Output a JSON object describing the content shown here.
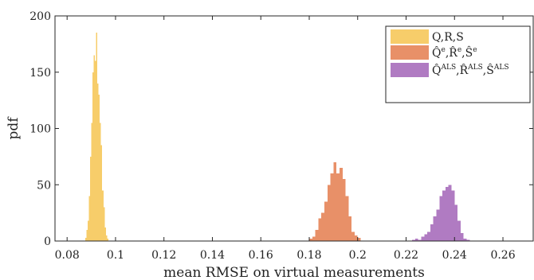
{
  "chart_data": {
    "type": "histogram",
    "xlabel": "mean RMSE on virtual measurements",
    "ylabel": "pdf",
    "xlim": [
      0.075,
      0.2725
    ],
    "ylim": [
      0,
      200
    ],
    "xticks": [
      0.08,
      0.1,
      0.12,
      0.14,
      0.16,
      0.18,
      0.2,
      0.22,
      0.24,
      0.26
    ],
    "xtick_labels": [
      "0.08",
      "0.1",
      "0.12",
      "0.14",
      "0.16",
      "0.18",
      "0.2",
      "0.22",
      "0.24",
      "0.26"
    ],
    "yticks": [
      0,
      50,
      100,
      150,
      200
    ],
    "ytick_labels": [
      "0",
      "50",
      "100",
      "150",
      "200"
    ],
    "legend_position": "top-right",
    "grid": false,
    "series": [
      {
        "label": {
          "base": [
            "Q",
            "R",
            "S"
          ],
          "hat": false,
          "sup": ""
        },
        "color": "#f7cd6a",
        "bin_width": 0.0005,
        "bin_start": 0.0875,
        "values": [
          3,
          10,
          18,
          40,
          75,
          105,
          150,
          165,
          160,
          185,
          140,
          130,
          105,
          85,
          45,
          30,
          12,
          5,
          2
        ]
      },
      {
        "label": {
          "base": [
            "Q",
            "R",
            "S"
          ],
          "hat": true,
          "sup": "e"
        },
        "color": "#e89068",
        "bin_width": 0.00125,
        "bin_start": 0.18,
        "values": [
          2,
          4,
          10,
          20,
          25,
          35,
          50,
          60,
          70,
          60,
          65,
          55,
          40,
          22,
          8,
          5,
          3
        ]
      },
      {
        "label": {
          "base": [
            "Q",
            "R",
            "S"
          ],
          "hat": true,
          "sup": "ALS"
        },
        "color": "#b07bc2",
        "bin_width": 0.00125,
        "bin_start": 0.2225,
        "values": [
          1,
          2,
          1,
          4,
          6,
          8,
          15,
          22,
          28,
          40,
          45,
          48,
          50,
          45,
          32,
          18,
          7,
          2,
          1
        ]
      }
    ]
  }
}
